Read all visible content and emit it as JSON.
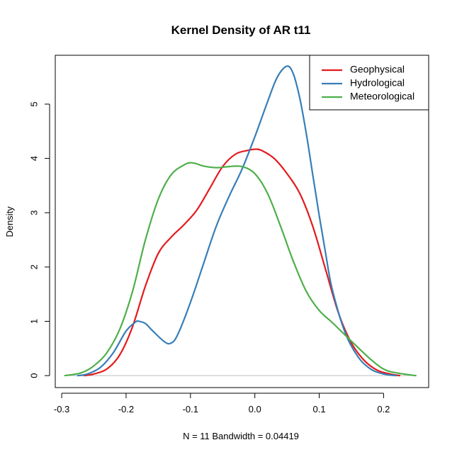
{
  "chart_data": {
    "type": "line",
    "title": "Kernel Density of AR t11",
    "xlabel": "N = 11   Bandwidth = 0.04419",
    "ylabel": "Density",
    "xlim": [
      -0.31,
      0.27
    ],
    "ylim": [
      -0.22,
      5.9
    ],
    "xticks": [
      -0.3,
      -0.2,
      -0.1,
      0.0,
      0.1,
      0.2
    ],
    "xtick_labels": [
      "-0.3",
      "-0.2",
      "-0.1",
      "0.0",
      "0.1",
      "0.2"
    ],
    "yticks": [
      0,
      1,
      2,
      3,
      4,
      5
    ],
    "ytick_labels": [
      "0",
      "1",
      "2",
      "3",
      "4",
      "5"
    ],
    "baseline": 0,
    "baseline_color": "#bebebe",
    "grid": false,
    "legend_position": "top-right",
    "series": [
      {
        "name": "Geophysical",
        "color": "#e41a1c",
        "x": [
          -0.265,
          -0.25,
          -0.23,
          -0.21,
          -0.19,
          -0.17,
          -0.15,
          -0.13,
          -0.11,
          -0.09,
          -0.07,
          -0.05,
          -0.03,
          -0.01,
          0.0,
          0.01,
          0.03,
          0.05,
          0.07,
          0.09,
          0.11,
          0.13,
          0.15,
          0.17,
          0.19,
          0.21,
          0.225
        ],
        "y": [
          0.0,
          0.03,
          0.12,
          0.38,
          0.9,
          1.65,
          2.25,
          2.55,
          2.78,
          3.05,
          3.45,
          3.85,
          4.08,
          4.15,
          4.17,
          4.15,
          4.0,
          3.72,
          3.35,
          2.75,
          1.95,
          1.15,
          0.6,
          0.28,
          0.1,
          0.03,
          0.0
        ]
      },
      {
        "name": "Hydrological",
        "color": "#377eb8",
        "x": [
          -0.275,
          -0.26,
          -0.24,
          -0.22,
          -0.2,
          -0.185,
          -0.18,
          -0.17,
          -0.16,
          -0.14,
          -0.13,
          -0.12,
          -0.1,
          -0.08,
          -0.06,
          -0.04,
          -0.02,
          0.0,
          0.02,
          0.035,
          0.05,
          0.06,
          0.07,
          0.08,
          0.09,
          0.1,
          0.11,
          0.12,
          0.14,
          0.16,
          0.18,
          0.2,
          0.22
        ],
        "y": [
          0.0,
          0.03,
          0.15,
          0.42,
          0.82,
          0.99,
          1.0,
          0.96,
          0.84,
          0.62,
          0.6,
          0.75,
          1.35,
          2.05,
          2.75,
          3.3,
          3.8,
          4.4,
          5.05,
          5.5,
          5.7,
          5.55,
          5.1,
          4.45,
          3.7,
          2.95,
          2.25,
          1.6,
          0.8,
          0.35,
          0.12,
          0.03,
          0.0
        ]
      },
      {
        "name": "Meteorological",
        "color": "#4daf4a",
        "x": [
          -0.295,
          -0.27,
          -0.25,
          -0.23,
          -0.21,
          -0.19,
          -0.17,
          -0.15,
          -0.13,
          -0.11,
          -0.1,
          -0.09,
          -0.08,
          -0.06,
          -0.04,
          -0.02,
          0.0,
          0.02,
          0.04,
          0.06,
          0.08,
          0.1,
          0.12,
          0.14,
          0.16,
          0.18,
          0.2,
          0.22,
          0.25
        ],
        "y": [
          0.0,
          0.05,
          0.18,
          0.42,
          0.85,
          1.55,
          2.5,
          3.25,
          3.7,
          3.88,
          3.92,
          3.9,
          3.86,
          3.83,
          3.85,
          3.85,
          3.72,
          3.35,
          2.75,
          2.1,
          1.55,
          1.2,
          0.98,
          0.75,
          0.52,
          0.3,
          0.12,
          0.05,
          0.0
        ]
      }
    ]
  }
}
